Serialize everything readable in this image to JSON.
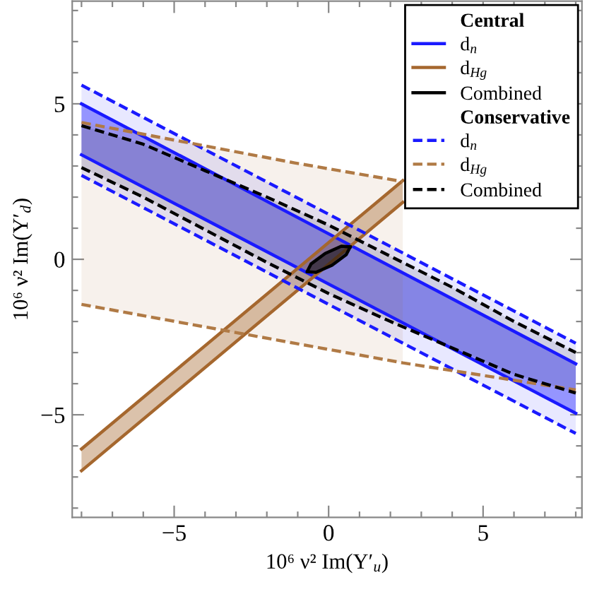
{
  "chart_data": {
    "type": "line",
    "xlabel": "10⁶ ν² Im(Y′$_{u}$)",
    "ylabel": "10⁶ ν² Im(Y′$_{d}$)",
    "annotations": [
      "Central",
      "Conservative"
    ],
    "xlim": [
      -8.3,
      8.2
    ],
    "ylim": [
      -8.3,
      8.3
    ],
    "xticks": [
      {
        "value": -8,
        "label": null
      },
      {
        "value": -7,
        "label": null
      },
      {
        "value": -6,
        "label": null
      },
      {
        "value": -5,
        "label": "−5"
      },
      {
        "value": -4,
        "label": null
      },
      {
        "value": -3,
        "label": null
      },
      {
        "value": -2,
        "label": null
      },
      {
        "value": -1,
        "label": null
      },
      0,
      {
        "value": 1,
        "label": null
      },
      {
        "value": 2,
        "label": null
      },
      {
        "value": 3,
        "label": null
      },
      {
        "value": 4,
        "label": null
      },
      5,
      {
        "value": 6,
        "label": null
      },
      {
        "value": 7,
        "label": null
      },
      {
        "value": 8,
        "label": null
      }
    ],
    "yticks": [
      {
        "value": -8,
        "label": null
      },
      {
        "value": -7,
        "label": null
      },
      {
        "value": -6,
        "label": null
      },
      {
        "value": -5,
        "label": "−5"
      },
      {
        "value": -4,
        "label": null
      },
      {
        "value": -3,
        "label": null
      },
      {
        "value": -2,
        "label": null
      },
      {
        "value": -1,
        "label": null
      },
      0,
      {
        "value": 1,
        "label": null
      },
      {
        "value": 2,
        "label": null
      },
      {
        "value": 3,
        "label": null
      },
      {
        "value": 4,
        "label": null
      },
      5,
      {
        "value": 6,
        "label": null
      },
      {
        "value": 7,
        "label": null
      },
      {
        "value": 8,
        "label": null
      }
    ],
    "grid": false,
    "legend": "top right",
    "marker": "none",
    "series": [
      {
        "name": "d$_{n}$",
        "color": "#1a1aff",
        "line_style": "solid",
        "x": [
          -8,
          8
        ],
        "values": [
          5.0,
          -3.36
        ],
        "upper": [
          5.0,
          -3.36
        ],
        "lower": [
          3.36,
          -4.95
        ]
      },
      {
        "color": "#1a1aff",
        "line_style": "solid",
        "x": [
          -8,
          8
        ],
        "values": [
          3.36,
          -4.95
        ]
      },
      {
        "name": "d$_{Hg}$",
        "color": "#a5672e",
        "line_style": "solid",
        "x": [
          -8,
          2.4
        ],
        "values": [
          -6.1,
          2.53
        ],
        "upper": [
          -6.1,
          2.53
        ],
        "lower": [
          -6.8,
          1.83
        ]
      },
      {
        "color": "#a5672e",
        "line_style": "solid",
        "x": [
          -8,
          2.4
        ],
        "values": [
          -6.8,
          1.83
        ]
      },
      {
        "name": "Combined",
        "color": "#000000",
        "line_style": "solid",
        "type": "area",
        "x": [
          0.7,
          0.41,
          -0.11,
          -0.57,
          -0.7,
          -0.41,
          0.11,
          0.57,
          0.7
        ],
        "values": [
          0.4,
          0.42,
          0.19,
          -0.15,
          -0.4,
          -0.42,
          -0.19,
          0.15,
          0.4
        ]
      },
      {
        "name": "d$_{n}$",
        "color": "#1a1aff",
        "line_style": "dashed",
        "x": [
          -8,
          8
        ],
        "values": [
          5.6,
          -2.7
        ],
        "upper": [
          5.6,
          -2.7
        ],
        "lower": [
          2.7,
          -5.6
        ]
      },
      {
        "color": "#1a1aff",
        "line_style": "dashed",
        "x": [
          -8,
          8
        ],
        "values": [
          2.7,
          -5.6
        ]
      },
      {
        "name": "d$_{Hg}$",
        "color": "#b07a45",
        "line_style": "dashed",
        "x": [
          -8,
          -1.1,
          2.4
        ],
        "values": [
          4.4,
          3.1,
          2.5
        ],
        "upper": [
          4.4,
          3.1,
          2.5
        ],
        "lower": [
          -1.45,
          -2.7,
          -3.33
        ]
      },
      {
        "color": "#b07a45",
        "line_style": "dashed",
        "x": [
          -8,
          -1.1,
          2.4,
          8
        ],
        "values": [
          -1.45,
          -2.7,
          -3.33,
          -4.2
        ]
      },
      {
        "name": "Combined",
        "color": "#000000",
        "line_style": "dashed",
        "x": [
          -8,
          -6,
          -4,
          -2,
          0,
          2,
          4,
          6,
          8
        ],
        "values": [
          4.3,
          3.7,
          2.85,
          2.0,
          1.1,
          0.1,
          -0.9,
          -2.0,
          -3.0
        ],
        "upper": [
          4.3,
          3.7,
          2.85,
          2.0,
          1.1,
          0.1,
          -0.9,
          -2.0,
          -3.0
        ],
        "lower": [
          2.95,
          2.0,
          0.95,
          -0.1,
          -1.1,
          -2.0,
          -2.85,
          -3.7,
          -4.3
        ]
      },
      {
        "color": "#000000",
        "line_style": "dashed",
        "x": [
          -8,
          -6,
          -4,
          -2,
          0,
          2,
          4,
          6,
          8
        ],
        "values": [
          2.95,
          2.0,
          0.95,
          -0.1,
          -1.1,
          -2.0,
          -2.85,
          -3.7,
          -4.3
        ]
      }
    ]
  }
}
